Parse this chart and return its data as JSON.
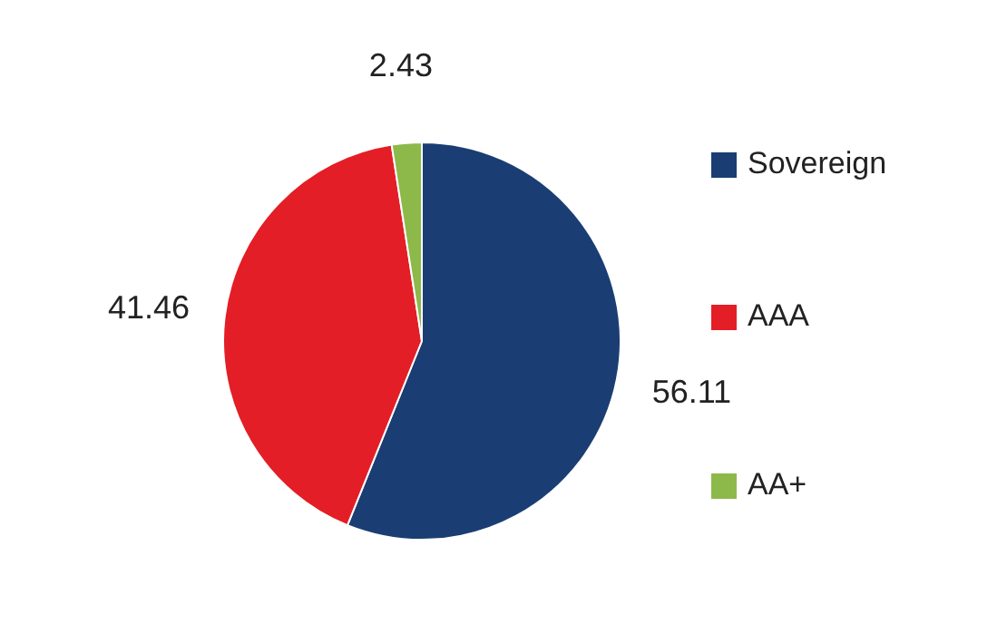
{
  "chart_data": {
    "type": "pie",
    "categories": [
      "Sovereign",
      "AAA",
      "AA+"
    ],
    "values": [
      56.11,
      41.46,
      2.43
    ],
    "colors": [
      "#1a3e73",
      "#e31e26",
      "#8db94a"
    ],
    "legend": "right",
    "data_labels": true
  }
}
